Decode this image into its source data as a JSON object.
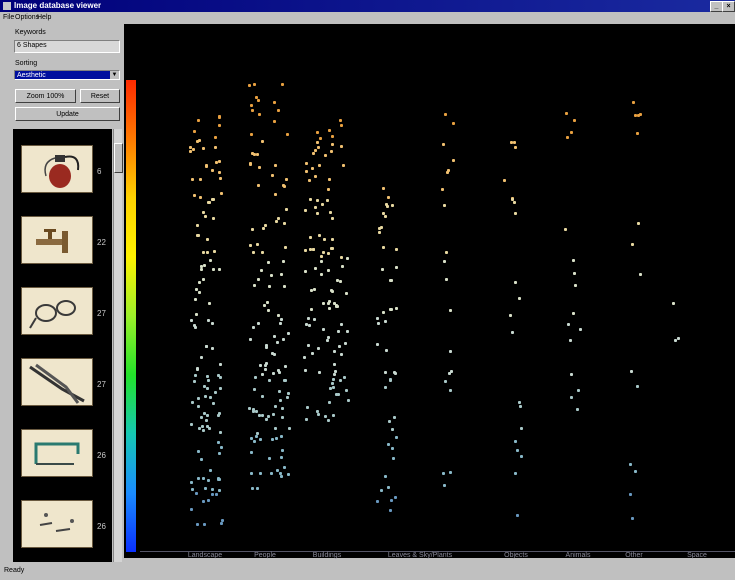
{
  "window": {
    "title": "Image database viewer"
  },
  "menu": [
    "File",
    "Options",
    "Help"
  ],
  "panel": {
    "field1_label": "Keywords",
    "field1_value": "6 Shapes",
    "field2_label": "Sorting",
    "field2_value": "Aesthetic",
    "btn_left": "Zoom 100%",
    "btn_right": "Reset",
    "btn_wide": "Update"
  },
  "thumbnails": [
    {
      "icon": "fire-extinguisher",
      "num": "6"
    },
    {
      "icon": "faucet",
      "num": "22"
    },
    {
      "icon": "scissors",
      "num": "27"
    },
    {
      "icon": "pliers",
      "num": "27"
    },
    {
      "icon": "hacksaw",
      "num": "26"
    },
    {
      "icon": "pins",
      "num": "26"
    }
  ],
  "categories": [
    "Landscape",
    "People",
    "Buildings",
    "Leaves & Sky/Plants",
    "Objects",
    "Animals",
    "Other",
    "Space"
  ],
  "status": "Ready",
  "colors": {
    "plot_bg": "#000000",
    "title_bg": "#00007a"
  }
}
